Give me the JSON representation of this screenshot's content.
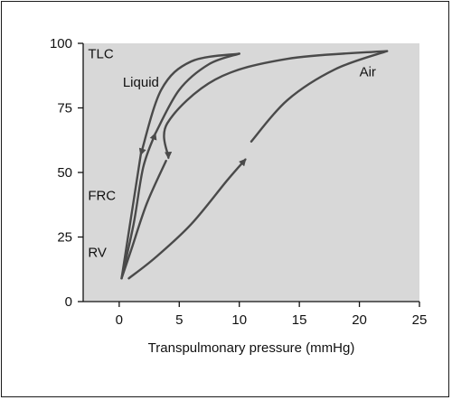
{
  "chart_data": {
    "type": "line",
    "title": "",
    "xlabel": "Transpulmonary pressure (mmHg)",
    "ylabel": "",
    "xlim": [
      -3,
      25
    ],
    "ylim": [
      0,
      100
    ],
    "x_ticks": [
      0,
      5,
      10,
      15,
      20,
      25
    ],
    "y_ticks": [
      0,
      25,
      50,
      75,
      100
    ],
    "grid": false,
    "plot_background": "#d8d8d8",
    "line_color": "#4a4a4a",
    "annotations": [
      {
        "text": "TLC",
        "x": -2.6,
        "y": 96
      },
      {
        "text": "Liquid",
        "x": 0.3,
        "y": 85
      },
      {
        "text": "Air",
        "x": 20.0,
        "y": 89
      },
      {
        "text": "FRC",
        "x": -2.6,
        "y": 41
      },
      {
        "text": "RV",
        "x": -2.6,
        "y": 19
      }
    ],
    "series": [
      {
        "name": "",
        "values": [
          [
            0.8,
            9
          ],
          [
            3,
            17
          ],
          [
            6,
            30
          ],
          [
            9,
            47
          ],
          [
            10.5,
            55
          ]
        ],
        "arrow_at_end": true
      },
      {
        "name": "",
        "values": [
          [
            11,
            62
          ],
          [
            14,
            78
          ],
          [
            18,
            90
          ],
          [
            22.3,
            97
          ]
        ],
        "arrow_at_end": false
      },
      {
        "name": "",
        "values": [
          [
            22.3,
            97
          ],
          [
            14,
            94
          ],
          [
            8,
            86
          ],
          [
            4,
            69
          ],
          [
            4.1,
            55.7
          ]
        ],
        "arrow_at_end": true
      },
      {
        "name": "",
        "values": [
          [
            3.9,
            54.5
          ],
          [
            2.3,
            38
          ],
          [
            1,
            20
          ],
          [
            0.2,
            9
          ]
        ],
        "arrow_at_end": false
      },
      {
        "name": "",
        "values": [
          [
            0.2,
            9
          ],
          [
            1.2,
            30
          ],
          [
            2,
            52
          ],
          [
            3,
            65
          ]
        ],
        "arrow_at_end": true
      },
      {
        "name": "",
        "values": [
          [
            3,
            65
          ],
          [
            5,
            82
          ],
          [
            7.5,
            92
          ],
          [
            10,
            96
          ]
        ],
        "arrow_at_end": false
      },
      {
        "name": "",
        "values": [
          [
            10,
            96
          ],
          [
            6,
            93
          ],
          [
            3.5,
            82
          ],
          [
            1.8,
            57
          ]
        ],
        "arrow_at_end": true
      },
      {
        "name": "",
        "values": [
          [
            1.8,
            57
          ],
          [
            0.9,
            30
          ],
          [
            0.2,
            9
          ]
        ],
        "arrow_at_end": false
      }
    ]
  }
}
